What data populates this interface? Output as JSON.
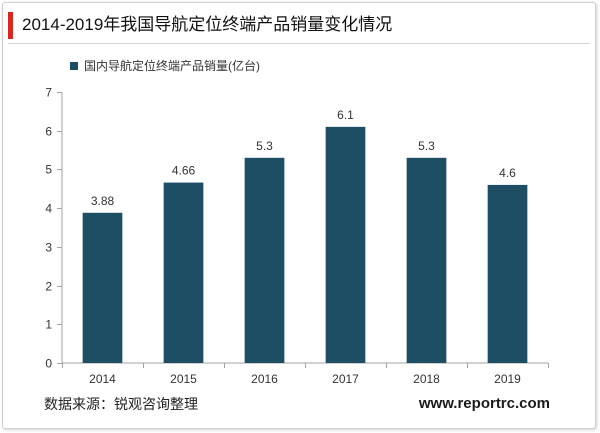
{
  "chart_data": {
    "type": "bar",
    "title": "2014-2019年我国导航定位终端产品销量变化情况",
    "categories": [
      "2014",
      "2015",
      "2016",
      "2017",
      "2018",
      "2019"
    ],
    "series": [
      {
        "name": "国内导航定位终端产品销量(亿台)",
        "values": [
          3.88,
          4.66,
          5.3,
          6.1,
          5.3,
          4.6
        ]
      }
    ],
    "xlabel": "",
    "ylabel": "",
    "ylim": [
      0,
      7
    ],
    "yticks": [
      0,
      1,
      2,
      3,
      4,
      5,
      6,
      7
    ],
    "data_labels_shown": true,
    "grid": false,
    "legend_position": "top-left"
  },
  "footer": {
    "source": "数据来源：锐观咨询整理",
    "website": "www.reportrc.com"
  },
  "colors": {
    "accent": "#d9261f",
    "bar": "#1d4e64",
    "axis": "#a3a3a3",
    "title_rule": "#d6d6d6"
  }
}
